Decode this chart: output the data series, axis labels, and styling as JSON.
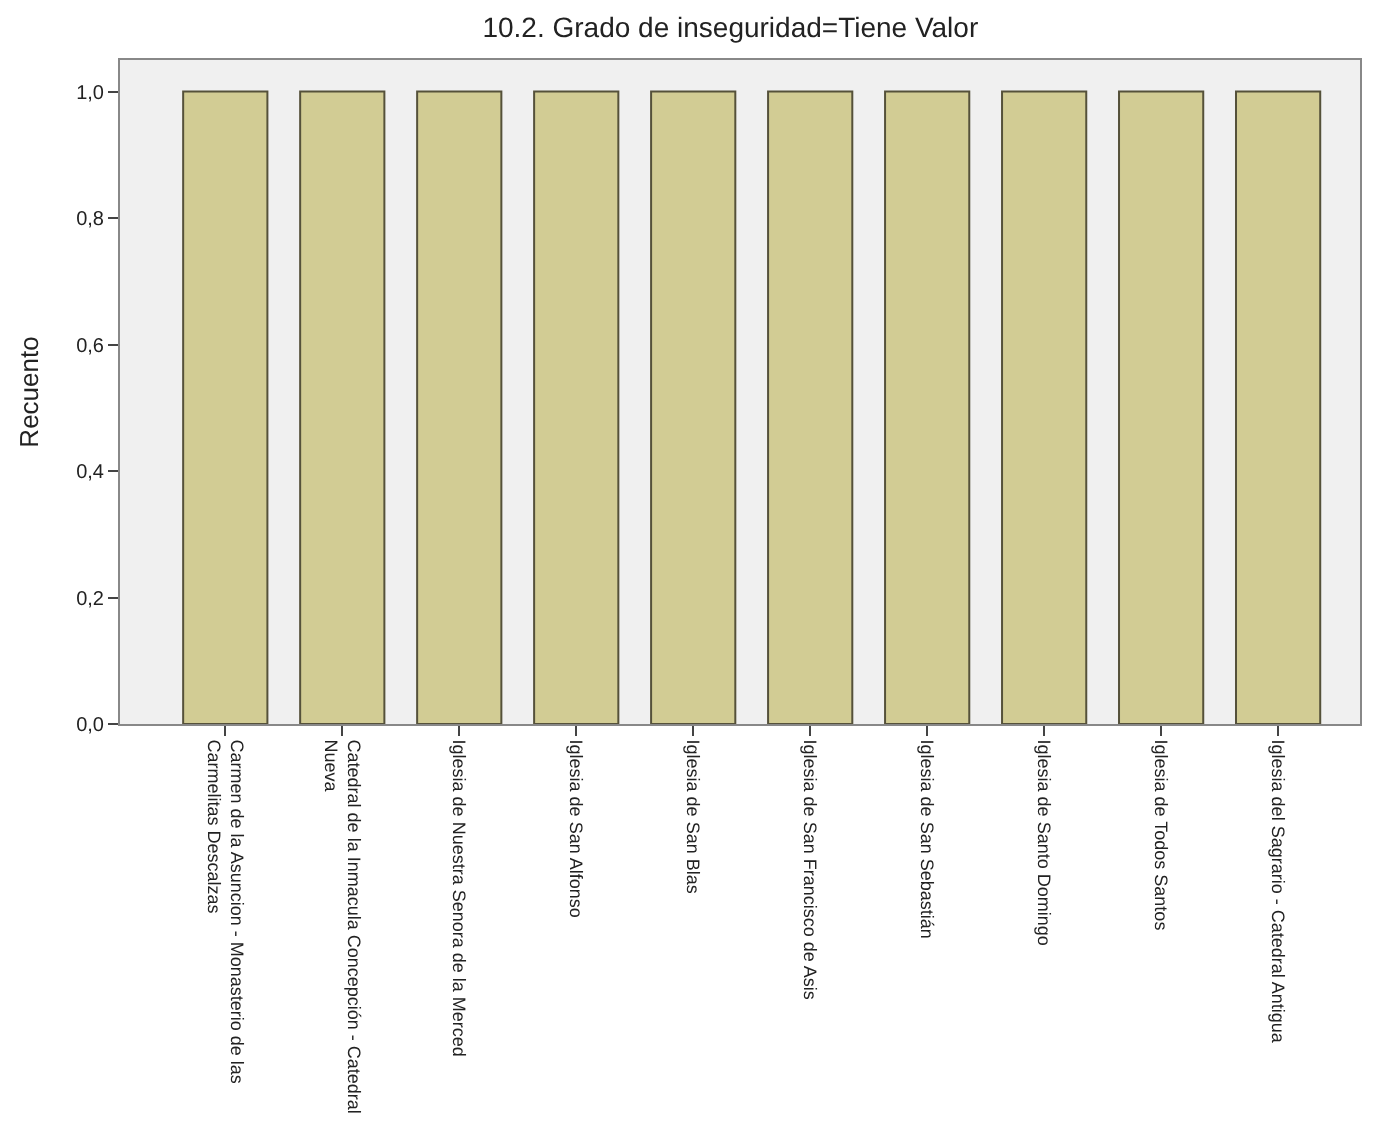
{
  "chart_data": {
    "type": "bar",
    "title": "10.2. Grado de inseguridad=Tiene Valor",
    "ylabel": "Recuento",
    "categories": [
      "Carmen de la Asuncion - Monasterio de las Carmelitas Descalzas",
      "Catedral de la Inmacula Concepción - Catedral Nueva",
      "Iglesia de Nuestra Senora de la Merced",
      "Iglesia de San Alfonso",
      "Iglesia de San Blas",
      "Iglesia de San Francisco de Asis",
      "Iglesia de San Sebastián",
      "Iglesia de Santo Domingo",
      "Iglesia de Todos Santos",
      "Iglesia del Sagrario - Catedral Antigua"
    ],
    "values": [
      1,
      1,
      1,
      1,
      1,
      1,
      1,
      1,
      1,
      1
    ],
    "color": "#d2cc94",
    "ylim": [
      0,
      1.05
    ],
    "yticks": [
      {
        "value": 0,
        "label": "0,0"
      },
      {
        "value": 0.2,
        "label": "0,2"
      },
      {
        "value": 0.4,
        "label": "0,4"
      },
      {
        "value": 0.6,
        "label": "0,6"
      },
      {
        "value": 0.8,
        "label": "0,8"
      },
      {
        "value": 1,
        "label": "1,0"
      }
    ],
    "grid": false
  }
}
